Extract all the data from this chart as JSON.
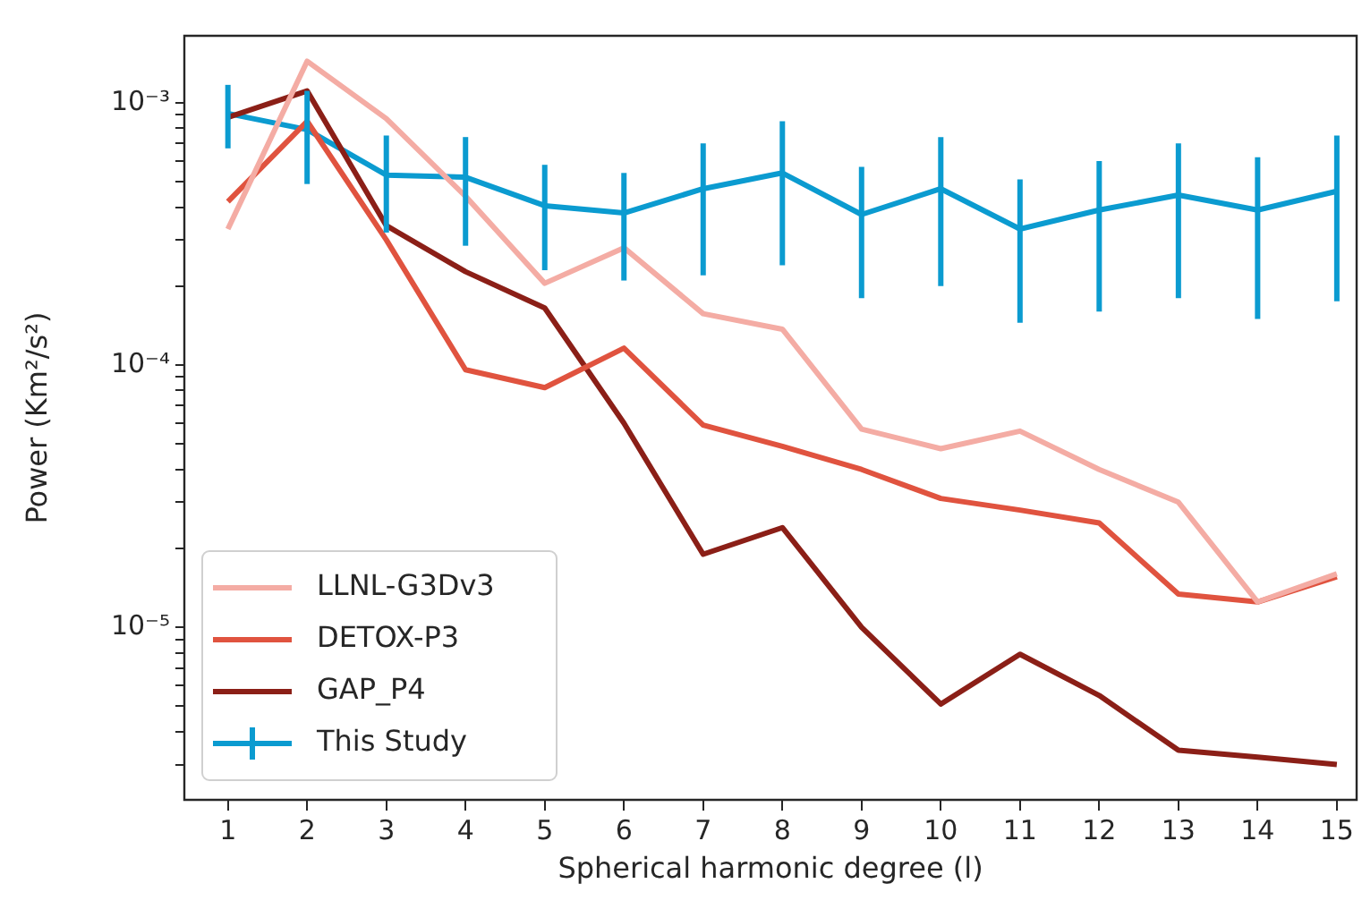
{
  "chart_data": {
    "type": "line",
    "xlabel": "Spherical harmonic degree (l)",
    "ylabel": "Power (Km²/s²)",
    "x": [
      1,
      2,
      3,
      4,
      5,
      6,
      7,
      8,
      9,
      10,
      11,
      12,
      13,
      14,
      15
    ],
    "xlim": [
      0.45,
      15.25
    ],
    "xticks": [
      1,
      2,
      3,
      4,
      5,
      6,
      7,
      8,
      9,
      10,
      11,
      12,
      13,
      14,
      15
    ],
    "log": "y",
    "ylim": [
      2.2e-06,
      0.0018
    ],
    "yticks": [
      {
        "value": 3e-06,
        "label": null
      },
      {
        "value": 4e-06,
        "label": null
      },
      {
        "value": 5e-06,
        "label": null
      },
      {
        "value": 6e-06,
        "label": null
      },
      {
        "value": 7e-06,
        "label": null
      },
      {
        "value": 8e-06,
        "label": null
      },
      {
        "value": 9e-06,
        "label": null
      },
      {
        "value": 1e-05,
        "label": "10⁻⁵"
      },
      {
        "value": 2e-05,
        "label": null
      },
      {
        "value": 3e-05,
        "label": null
      },
      {
        "value": 4e-05,
        "label": null
      },
      {
        "value": 5e-05,
        "label": null
      },
      {
        "value": 6e-05,
        "label": null
      },
      {
        "value": 7e-05,
        "label": null
      },
      {
        "value": 8e-05,
        "label": null
      },
      {
        "value": 9e-05,
        "label": null
      },
      {
        "value": 0.0001,
        "label": "10⁻⁴"
      },
      {
        "value": 0.0002,
        "label": null
      },
      {
        "value": 0.0003,
        "label": null
      },
      {
        "value": 0.0004,
        "label": null
      },
      {
        "value": 0.0005,
        "label": null
      },
      {
        "value": 0.0006,
        "label": null
      },
      {
        "value": 0.0007,
        "label": null
      },
      {
        "value": 0.0008,
        "label": null
      },
      {
        "value": 0.0009,
        "label": null
      },
      {
        "value": 0.001,
        "label": "10⁻³"
      }
    ],
    "grid": false,
    "legend": "bottom left",
    "marker": "none",
    "line_style": "solid",
    "series": [
      {
        "name": "LLNL-G3Dv3",
        "color": "#f4aca4",
        "values": [
          0.00033,
          0.00144,
          0.00087,
          0.00044,
          0.000205,
          0.00028,
          0.000157,
          0.000137,
          5.7e-05,
          4.8e-05,
          5.6e-05,
          4e-05,
          3e-05,
          1.25e-05,
          1.6e-05
        ]
      },
      {
        "name": "DETOX-P3",
        "color": "#e0533f",
        "values": [
          0.00042,
          0.00085,
          0.0003,
          9.6e-05,
          8.2e-05,
          0.000116,
          5.9e-05,
          4.9e-05,
          4e-05,
          3.1e-05,
          2.8e-05,
          2.5e-05,
          1.34e-05,
          1.25e-05,
          1.56e-05
        ]
      },
      {
        "name": "GAP_P4",
        "color": "#8b1f17",
        "values": [
          0.00088,
          0.00111,
          0.00034,
          0.000227,
          0.000165,
          6e-05,
          1.9e-05,
          2.4e-05,
          1e-05,
          5.1e-06,
          7.9e-06,
          5.5e-06,
          3.4e-06,
          3.2e-06,
          3e-06
        ]
      },
      {
        "name": "This Study",
        "color": "#0b9bd0",
        "values": [
          0.00091,
          0.00079,
          0.00053,
          0.00052,
          0.000405,
          0.00038,
          0.00047,
          0.00054,
          0.000375,
          0.00047,
          0.00033,
          0.00039,
          0.000445,
          0.00039,
          0.00046
        ],
        "errors": [
          [
            0.00067,
            0.00117
          ],
          [
            0.00049,
            0.00111
          ],
          [
            0.00032,
            0.00075
          ],
          [
            0.000285,
            0.00074
          ],
          [
            0.00023,
            0.00058
          ],
          [
            0.00021,
            0.00054
          ],
          [
            0.00022,
            0.0007
          ],
          [
            0.00024,
            0.00085
          ],
          [
            0.00018,
            0.00057
          ],
          [
            0.0002,
            0.00074
          ],
          [
            0.000145,
            0.00051
          ],
          [
            0.00016,
            0.0006
          ],
          [
            0.00018,
            0.0007
          ],
          [
            0.00015,
            0.00062
          ],
          [
            0.000175,
            0.00075
          ]
        ]
      }
    ]
  }
}
